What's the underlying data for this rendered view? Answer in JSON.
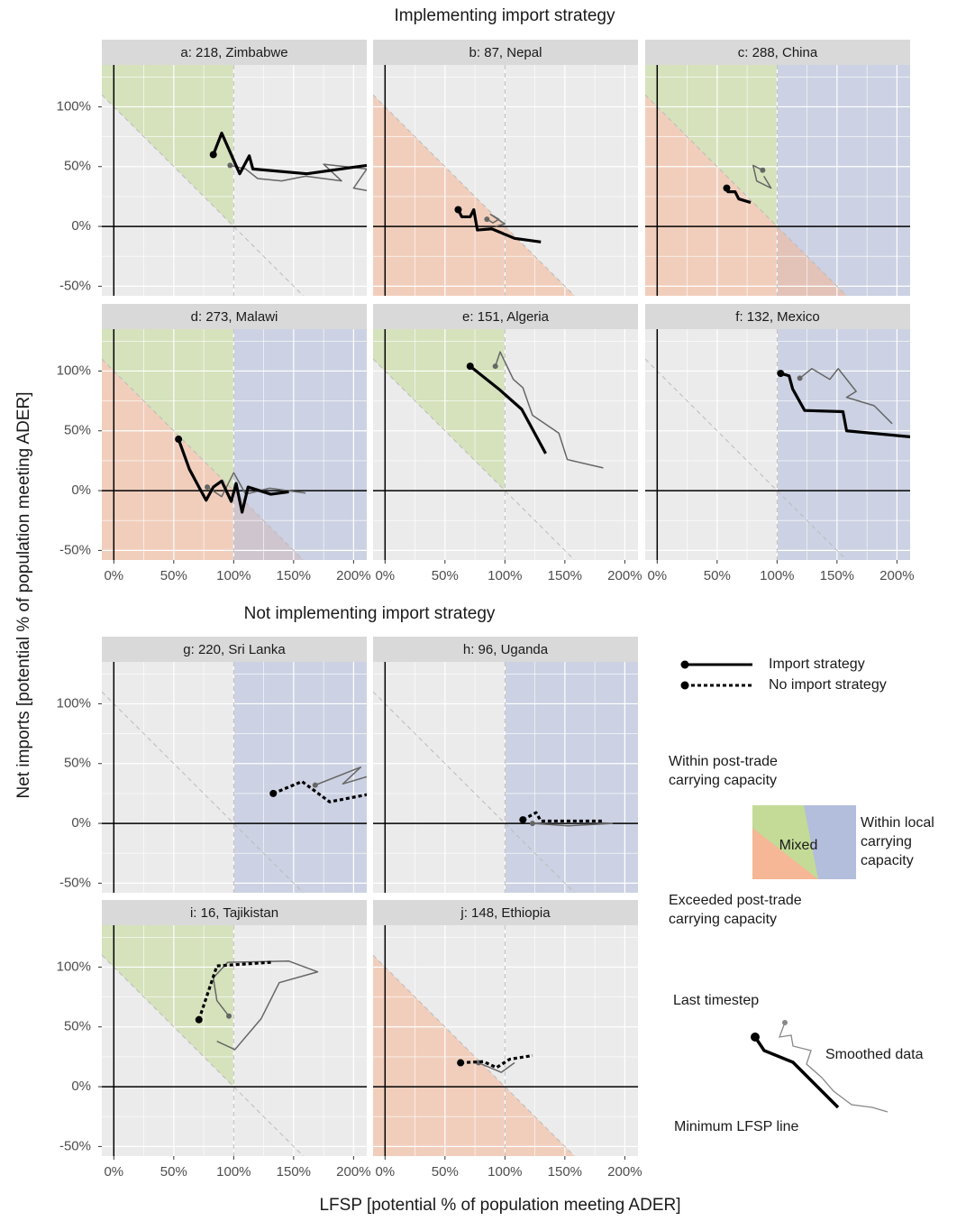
{
  "chart_data": {
    "type": "line",
    "xlabel": "LFSP [potential % of population meeting ADER]",
    "ylabel": "Net imports [potential % of population meeting ADER]",
    "xlim": [
      -10,
      211
    ],
    "ylim": [
      -58,
      135
    ],
    "xticks": [
      {
        "value": 0,
        "label": "0%"
      },
      {
        "value": 50,
        "label": "50%"
      },
      {
        "value": 100,
        "label": "100%"
      },
      {
        "value": 150,
        "label": "150%"
      },
      {
        "value": 200,
        "label": "200%"
      }
    ],
    "yticks": [
      {
        "value": -50,
        "label": "-50%"
      },
      {
        "value": 0,
        "label": "0%"
      },
      {
        "value": 50,
        "label": "50%"
      },
      {
        "value": 100,
        "label": "100%"
      }
    ],
    "grid": true,
    "threshold": 100,
    "groups": [
      {
        "title": "Implementing import strategy",
        "panels": [
          {
            "title": "a: 218, Zimbabwe",
            "regions": [
              "post-trade"
            ],
            "series": [
              {
                "color": "#666666",
                "dash": "solid",
                "x": [
                  97,
                  110,
                  120,
                  140,
                  160,
                  190,
                  175,
                  211,
                  200,
                  211
                ],
                "values": [
                  51,
                  48,
                  40,
                  38,
                  42,
                  38,
                  52,
                  48,
                  32,
                  30
                ]
              },
              {
                "color": "#000000",
                "dash": "solid",
                "x": [
                  83,
                  90,
                  105,
                  113,
                  116,
                  161,
                  211
                ],
                "values": [
                  60,
                  78,
                  44,
                  59,
                  48,
                  44,
                  51
                ]
              }
            ]
          },
          {
            "title": "b: 87, Nepal",
            "regions": [
              "exceeded"
            ],
            "series": [
              {
                "color": "#666666",
                "dash": "solid",
                "x": [
                  85,
                  90,
                  95,
                  88,
                  100,
                  92
                ],
                "values": [
                  6,
                  3,
                  6,
                  10,
                  2,
                  0
                ]
              },
              {
                "color": "#000000",
                "dash": "solid",
                "x": [
                  61,
                  64,
                  71,
                  74,
                  77,
                  89,
                  108,
                  130
                ],
                "values": [
                  14,
                  8,
                  8,
                  14,
                  -3,
                  -2,
                  -10,
                  -13
                ]
              }
            ]
          },
          {
            "title": "c: 288, China",
            "regions": [
              "local",
              "post-trade",
              "exceeded"
            ],
            "series": [
              {
                "color": "#666666",
                "dash": "solid",
                "x": [
                  88,
                  80,
                  83,
                  95,
                  89
                ],
                "values": [
                  47,
                  51,
                  38,
                  32,
                  42
                ]
              },
              {
                "color": "#000000",
                "dash": "solid",
                "x": [
                  58,
                  59,
                  65,
                  68,
                  78
                ],
                "values": [
                  32,
                  29,
                  29,
                  23,
                  20
                ]
              }
            ]
          },
          {
            "title": "d: 273, Malawi",
            "regions": [
              "post-trade",
              "exceeded",
              "local"
            ],
            "series": [
              {
                "color": "#666666",
                "dash": "solid",
                "x": [
                  78,
                  90,
                  100,
                  110,
                  130,
                  160
                ],
                "values": [
                  3,
                  -5,
                  15,
                  -3,
                  2,
                  -2
                ]
              },
              {
                "color": "#000000",
                "dash": "solid",
                "x": [
                  54,
                  63,
                  71,
                  77,
                  83,
                  90,
                  98,
                  102,
                  107,
                  112,
                  131,
                  146
                ],
                "values": [
                  43,
                  18,
                  3,
                  -8,
                  3,
                  8,
                  -9,
                  6,
                  -18,
                  3,
                  -3,
                  -1
                ]
              }
            ]
          },
          {
            "title": "e: 151, Algeria",
            "regions": [
              "post-trade"
            ],
            "series": [
              {
                "color": "#666666",
                "dash": "solid",
                "x": [
                  92,
                  96,
                  107,
                  115,
                  123,
                  145,
                  152,
                  182
                ],
                "values": [
                  104,
                  116,
                  93,
                  86,
                  63,
                  48,
                  26,
                  19
                ]
              },
              {
                "color": "#000000",
                "dash": "solid",
                "x": [
                  71,
                  96,
                  114,
                  134
                ],
                "values": [
                  104,
                  84,
                  68,
                  31
                ]
              }
            ]
          },
          {
            "title": "f: 132, Mexico",
            "regions": [
              "local"
            ],
            "series": [
              {
                "color": "#666666",
                "dash": "solid",
                "x": [
                  119,
                  129,
                  144,
                  151,
                  166,
                  158,
                  181,
                  196
                ],
                "values": [
                  94,
                  102,
                  93,
                  102,
                  83,
                  78,
                  71,
                  56
                ]
              },
              {
                "color": "#000000",
                "dash": "solid",
                "x": [
                  103,
                  110,
                  113,
                  123,
                  155,
                  158,
                  211
                ],
                "values": [
                  98,
                  96,
                  85,
                  67,
                  66,
                  50,
                  45
                ]
              }
            ]
          }
        ]
      },
      {
        "title": "Not implementing import strategy",
        "panels": [
          {
            "title": "g: 220, Sri Lanka",
            "regions": [
              "local"
            ],
            "series": [
              {
                "color": "#666666",
                "dash": "solid",
                "x": [
                  168,
                  206,
                  191,
                  211
                ],
                "values": [
                  32,
                  47,
                  33,
                  39
                ]
              },
              {
                "color": "#000000",
                "dash": "dotted",
                "x": [
                  133,
                  157,
                  180,
                  211
                ],
                "values": [
                  25,
                  35,
                  18,
                  24
                ]
              }
            ]
          },
          {
            "title": "h: 96, Uganda",
            "regions": [
              "local"
            ],
            "series": [
              {
                "color": "#666666",
                "dash": "solid",
                "x": [
                  123,
                  153,
                  190
                ],
                "values": [
                  0,
                  -2,
                  0
                ]
              },
              {
                "color": "#000000",
                "dash": "dotted",
                "x": [
                  115,
                  126,
                  130,
                  182
                ],
                "values": [
                  3,
                  9,
                  2,
                  2
                ]
              }
            ]
          },
          {
            "title": "i: 16, Tajikistan",
            "regions": [
              "post-trade"
            ],
            "series": [
              {
                "color": "#666666",
                "dash": "solid",
                "x": [
                  96,
                  86,
                  83,
                  95,
                  146,
                  170,
                  138,
                  123,
                  101,
                  86
                ],
                "values": [
                  59,
                  72,
                  91,
                  104,
                  105,
                  96,
                  87,
                  57,
                  31,
                  38
                ]
              },
              {
                "color": "#000000",
                "dash": "dotted",
                "x": [
                  71,
                  86,
                  131
                ],
                "values": [
                  56,
                  101,
                  104
                ]
              }
            ]
          },
          {
            "title": "j: 148, Ethiopia",
            "regions": [
              "exceeded"
            ],
            "series": [
              {
                "color": "#666666",
                "dash": "solid",
                "x": [
                  78,
                  97,
                  108
                ],
                "values": [
                  20,
                  12,
                  20
                ]
              },
              {
                "color": "#000000",
                "dash": "dotted",
                "x": [
                  63,
                  82,
                  93,
                  104,
                  123
                ],
                "values": [
                  20,
                  21,
                  16,
                  23,
                  26
                ]
              }
            ]
          }
        ]
      }
    ],
    "region_colors": {
      "post-trade": "#c3db96",
      "exceeded": "#f5b795",
      "local": "#b3bddc"
    },
    "legend": {
      "lines": [
        {
          "name": "Import strategy",
          "dash": "solid"
        },
        {
          "name": "No import strategy",
          "dash": "dotted"
        }
      ],
      "post_trade": "Within post-trade carrying capacity",
      "local": "Within local carrying capacity",
      "exceeded": "Exceeded post-trade carrying capacity",
      "mixed": "Mixed",
      "last": "Last timestep",
      "smoothed": "Smoothed data",
      "minimum": "Minimum LFSP line"
    }
  }
}
